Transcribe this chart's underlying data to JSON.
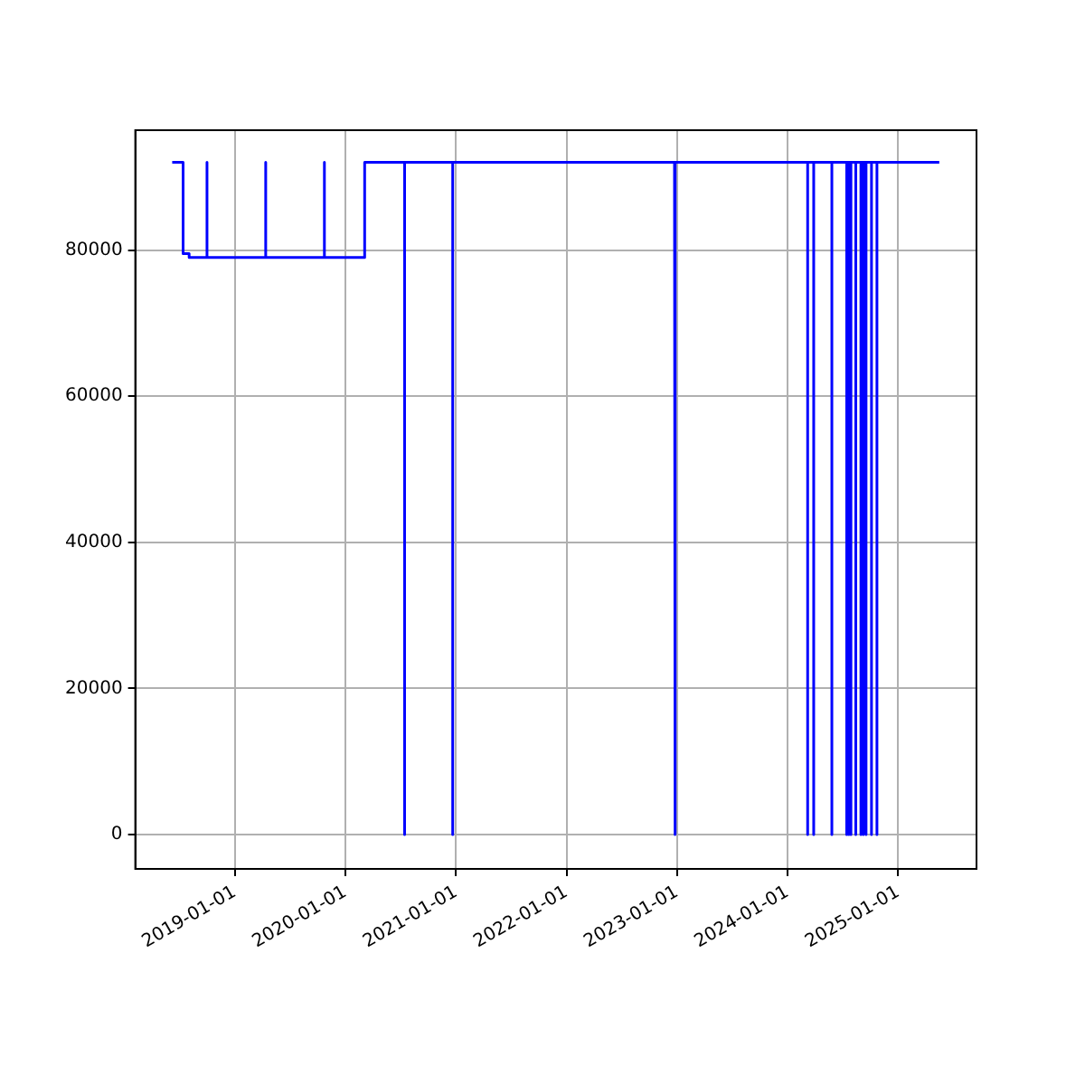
{
  "chart_data": {
    "type": "line",
    "x": [
      "2018-06-08",
      "2018-07-14",
      "2018-07-14",
      "2018-08-03",
      "2018-08-03",
      "2018-10-01",
      "2018-10-01",
      "2018-10-01",
      "2019-04-13",
      "2019-04-13",
      "2019-04-13",
      "2019-10-24",
      "2019-10-24",
      "2019-10-24",
      "2020-03-05",
      "2020-03-05",
      "2020-07-15",
      "2020-07-15",
      "2020-07-15",
      "2020-12-21",
      "2020-12-21",
      "2020-12-21",
      "2022-12-24",
      "2022-12-24",
      "2022-12-27",
      "2022-12-27",
      "2024-03-08",
      "2024-03-08",
      "2024-03-08",
      "2024-03-28",
      "2024-03-28",
      "2024-03-28",
      "2024-05-27",
      "2024-05-27",
      "2024-05-27",
      "2024-07-15",
      "2024-07-15",
      "2024-07-15",
      "2024-07-22",
      "2024-07-22",
      "2024-07-22",
      "2024-07-29",
      "2024-07-29",
      "2024-07-29",
      "2024-08-14",
      "2024-08-14",
      "2024-08-14",
      "2024-08-31",
      "2024-08-31",
      "2024-08-31",
      "2024-09-08",
      "2024-09-08",
      "2024-09-08",
      "2024-09-17",
      "2024-09-17",
      "2024-09-17",
      "2024-10-05",
      "2024-10-05",
      "2024-10-05",
      "2024-10-23",
      "2024-10-23",
      "2024-10-23",
      "2025-05-17"
    ],
    "series": [
      {
        "color": "#0000ff",
        "values": [
          92000,
          92000,
          79500,
          79500,
          79000,
          79000,
          92000,
          79000,
          79000,
          92000,
          79000,
          79000,
          92000,
          79000,
          79000,
          92000,
          92000,
          0,
          92000,
          92000,
          0,
          92000,
          92000,
          0,
          0,
          92000,
          92000,
          0,
          92000,
          92000,
          0,
          92000,
          92000,
          0,
          92000,
          92000,
          0,
          92000,
          92000,
          0,
          92000,
          92000,
          0,
          92000,
          92000,
          0,
          92000,
          92000,
          0,
          92000,
          92000,
          0,
          92000,
          92000,
          0,
          92000,
          92000,
          0,
          92000,
          92000,
          0,
          92000,
          92000
        ]
      }
    ],
    "xlim": [
      "2018-02-06",
      "2025-09-17"
    ],
    "xticks": [
      "2019-01-01",
      "2020-01-01",
      "2021-01-01",
      "2022-01-01",
      "2023-01-01",
      "2024-01-01",
      "2025-01-01"
    ],
    "ylim": [
      -4700,
      96400
    ],
    "yticks": [
      0,
      20000,
      40000,
      60000,
      80000
    ],
    "grid": true,
    "legend": false,
    "marker": "none",
    "line_style": "solid"
  }
}
